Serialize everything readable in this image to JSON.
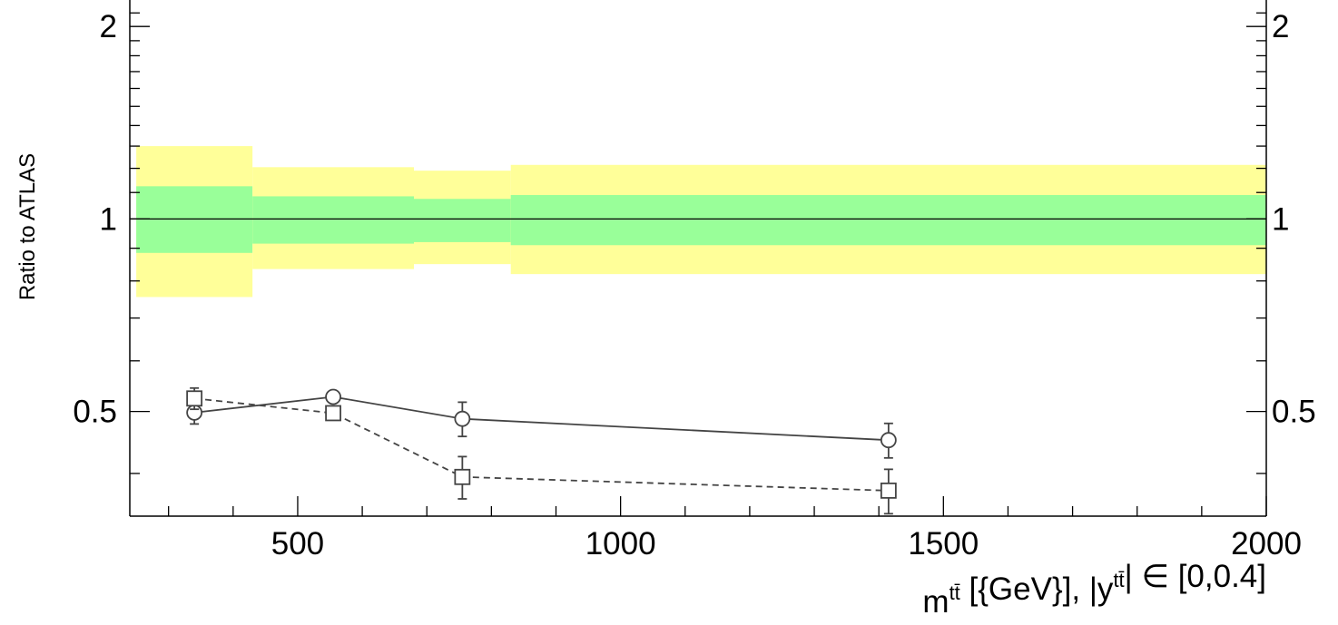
{
  "chart_data": {
    "type": "line",
    "xlabel": "m^{tt̄} [{GeV}], |y^{tt̄}| ∈ [0,0.4]",
    "ylabel": "Ratio to ATLAS",
    "xlim": [
      240,
      2000
    ],
    "ylim": [
      0.343,
      2.2
    ],
    "y_scale": "log",
    "x_ticks": [
      500,
      1000,
      1500,
      2000
    ],
    "x_tick_labels": [
      "500",
      "1000",
      "1500",
      "2000"
    ],
    "y_ticks": [
      0.5,
      1,
      2
    ],
    "y_tick_labels": [
      "0.5",
      "1",
      "2"
    ],
    "reference_line": 1,
    "bands": [
      {
        "x0": 250,
        "x1": 430,
        "inner": [
          0.885,
          1.125
        ],
        "outer": [
          0.755,
          1.3
        ]
      },
      {
        "x0": 430,
        "x1": 680,
        "inner": [
          0.915,
          1.085
        ],
        "outer": [
          0.835,
          1.205
        ]
      },
      {
        "x0": 680,
        "x1": 830,
        "inner": [
          0.92,
          1.075
        ],
        "outer": [
          0.85,
          1.19
        ]
      },
      {
        "x0": 830,
        "x1": 2000,
        "inner": [
          0.91,
          1.09
        ],
        "outer": [
          0.82,
          1.215
        ]
      }
    ],
    "band_colors": {
      "inner": "#99ff99",
      "outer": "#ffff99"
    },
    "series": [
      {
        "marker": "circle",
        "line": "solid",
        "color": "#444444",
        "x": [
          340,
          555,
          755,
          1415
        ],
        "y": [
          0.498,
          0.527,
          0.487,
          0.451
        ],
        "err": [
          0.02,
          0.01,
          0.03,
          0.028
        ]
      },
      {
        "marker": "square",
        "line": "dashed",
        "color": "#444444",
        "x": [
          340,
          555,
          755,
          1415
        ],
        "y": [
          0.524,
          0.497,
          0.395,
          0.376
        ],
        "err": [
          0.02,
          0.01,
          0.03,
          0.03
        ]
      }
    ]
  }
}
